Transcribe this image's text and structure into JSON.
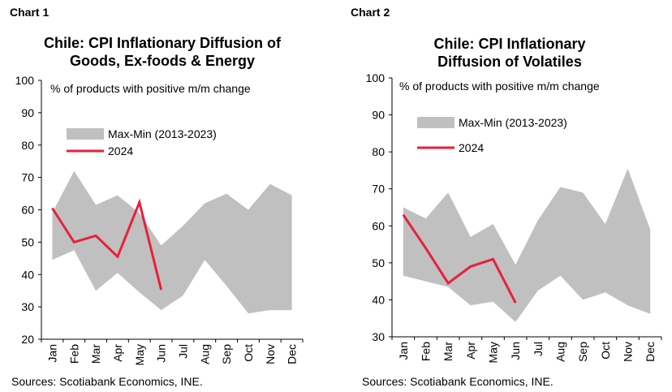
{
  "charts": [
    {
      "label": "Chart 1",
      "title_line1": "Chile: CPI Inflationary Diffusion of",
      "title_line2": "Goods, Ex-foods & Energy",
      "source": "Sources: Scotiabank Economics, INE."
    },
    {
      "label": "Chart 2",
      "title_line1": "Chile: CPI Inflationary",
      "title_line2": "Diffusion of Volatiles",
      "source": "Sources: Scotiabank Economics, INE."
    }
  ],
  "colors": {
    "band": "#c0c0c0",
    "line2024": "#e8203a",
    "axis": "#000000"
  },
  "chart_data": [
    {
      "type": "area",
      "title": "Chile: CPI Inflationary Diffusion of Goods, Ex-foods & Energy",
      "annotation": "% of products with positive m/m change",
      "categories": [
        "Jan",
        "Feb",
        "Mar",
        "Apr",
        "May",
        "Jun",
        "Jul",
        "Aug",
        "Sep",
        "Oct",
        "Nov",
        "Dec"
      ],
      "ylim": [
        20,
        100
      ],
      "yticks": [
        20,
        30,
        40,
        50,
        60,
        70,
        80,
        90,
        100
      ],
      "legend": [
        "Max-Min (2013-2023)",
        "2024"
      ],
      "band_max": [
        59,
        72,
        61.5,
        64.5,
        59,
        49,
        55,
        62,
        65,
        60,
        68,
        64.5
      ],
      "band_min": [
        44.5,
        47.5,
        35,
        40.5,
        34.5,
        29,
        33.5,
        44.5,
        36.5,
        28,
        29,
        29
      ],
      "series": [
        {
          "name": "2024",
          "values": [
            60.5,
            50,
            52,
            45.5,
            62.3,
            35.3,
            null,
            null,
            null,
            null,
            null,
            null
          ]
        }
      ]
    },
    {
      "type": "area",
      "title": "Chile: CPI Inflationary Diffusion of Volatiles",
      "annotation": "% of products with positive m/m change",
      "categories": [
        "Jan",
        "Feb",
        "Mar",
        "Apr",
        "May",
        "Jun",
        "Jul",
        "Aug",
        "Sep",
        "Oct",
        "Nov",
        "Dec"
      ],
      "ylim": [
        30,
        100
      ],
      "yticks": [
        30,
        40,
        50,
        60,
        70,
        80,
        90,
        100
      ],
      "legend": [
        "Max-Min (2013-2023)",
        "2024"
      ],
      "band_max": [
        65,
        62,
        69,
        57,
        60.5,
        49.5,
        61.5,
        70.5,
        69,
        60.5,
        75.5,
        59
      ],
      "band_min": [
        46.5,
        45,
        43.5,
        38.5,
        39.5,
        34,
        42.5,
        46.5,
        40,
        42,
        38.5,
        36.2
      ],
      "series": [
        {
          "name": "2024",
          "values": [
            63,
            54,
            44.5,
            49,
            51,
            39.2,
            null,
            null,
            null,
            null,
            null,
            null
          ]
        }
      ]
    }
  ]
}
